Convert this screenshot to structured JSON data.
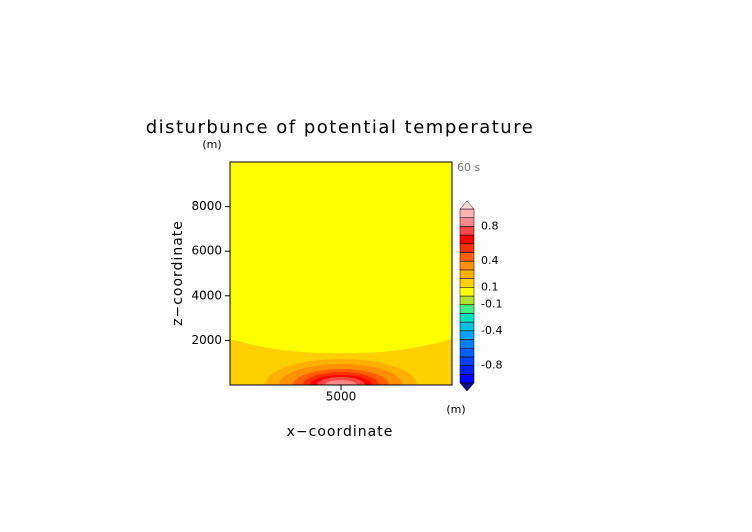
{
  "chart_data": {
    "type": "contour",
    "title": "disturbunce of potential temperature",
    "x_label": "x−coordinate",
    "y_label": "z−coordinate",
    "x_unit": "(m)",
    "y_unit": "(m)",
    "annotation": "60 s",
    "xlim": [
      0,
      10000
    ],
    "ylim": [
      0,
      10000
    ],
    "xticks": [
      5000
    ],
    "yticks": [
      2000,
      4000,
      6000,
      8000
    ],
    "levels": [
      -1.0,
      -0.9,
      -0.8,
      -0.7,
      -0.6,
      -0.5,
      -0.4,
      -0.3,
      -0.2,
      -0.1,
      0,
      0.1,
      0.2,
      0.3,
      0.4,
      0.5,
      0.6,
      0.7,
      0.8,
      0.9,
      1.0
    ],
    "colors": [
      "#101080",
      "#0000ff",
      "#0020ff",
      "#0040ff",
      "#0060ff",
      "#0080ff",
      "#00a0ff",
      "#00c0e0",
      "#00e0c0",
      "#40f080",
      "#b0e030",
      "#ffff00",
      "#ffd000",
      "#ffb000",
      "#ff9000",
      "#ff6000",
      "#ff3000",
      "#ff0000",
      "#ff4848",
      "#ff8888",
      "#ffb4b4",
      "#ffd8d8"
    ],
    "colorbar_ticks": [
      0.8,
      0.4,
      0.1,
      -0.1,
      -0.4,
      -0.8
    ]
  }
}
